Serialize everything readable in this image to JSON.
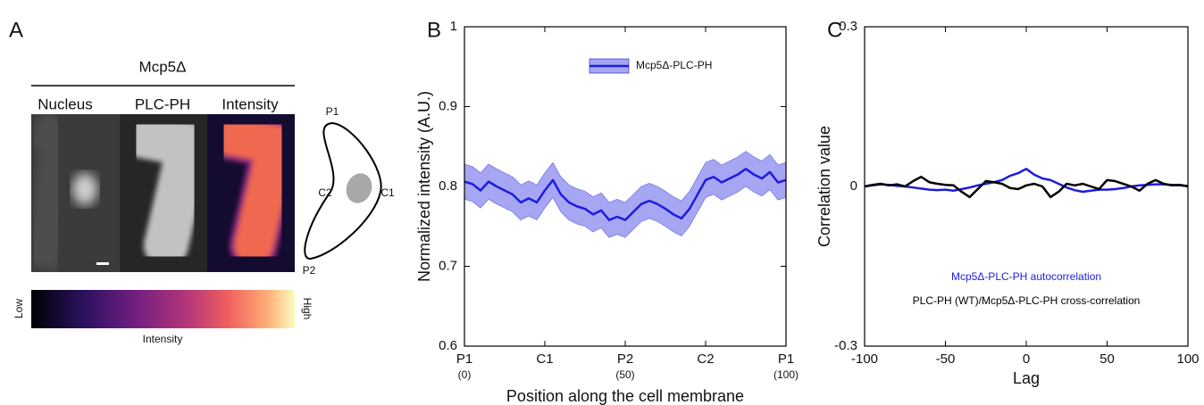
{
  "panel_a": {
    "label": "A",
    "title": "Mcp5Δ",
    "columns": [
      "Nucleus",
      "PLC-PH",
      "Intensity"
    ],
    "colorbar": {
      "low": "Low",
      "high": "High",
      "label": "Intensity"
    },
    "diagram": {
      "labels": [
        "P1",
        "C2",
        "C1",
        "P2"
      ]
    }
  },
  "chart_data": [
    {
      "type": "line",
      "panel_label": "B",
      "xlabel": "Position along the cell membrane",
      "ylabel": "Normalized intensity (A.U.)",
      "xlim": [
        0,
        100
      ],
      "ylim": [
        0.6,
        1
      ],
      "xticks": [
        {
          "value": 0,
          "label": "P1"
        },
        {
          "value": 25,
          "label": "C1"
        },
        {
          "value": 50,
          "label": "P2"
        },
        {
          "value": 75,
          "label": "C2"
        },
        {
          "value": 100,
          "label": "P1"
        }
      ],
      "xtick_sublabels": [
        {
          "value": 0,
          "label": "(0)"
        },
        {
          "value": 50,
          "label": "(50)"
        },
        {
          "value": 100,
          "label": "(100)"
        }
      ],
      "yticks": [
        0.6,
        0.7,
        0.8,
        0.9,
        1
      ],
      "legend": "upper center",
      "x": [
        0,
        2.5,
        5,
        7.5,
        10,
        12.5,
        15,
        17.5,
        20,
        22.5,
        25,
        27.5,
        30,
        32.5,
        35,
        37.5,
        40,
        42.5,
        45,
        47.5,
        50,
        52.5,
        55,
        57.5,
        60,
        62.5,
        65,
        67.5,
        70,
        72.5,
        75,
        77.5,
        80,
        82.5,
        85,
        87.5,
        90,
        92.5,
        95,
        97.5,
        100
      ],
      "series": [
        {
          "name": "Mcp5Δ-PLC-PH",
          "color": "#1c1ce0",
          "band_color": "#a6a6f2",
          "values": [
            0.806,
            0.803,
            0.795,
            0.806,
            0.8,
            0.795,
            0.79,
            0.78,
            0.785,
            0.78,
            0.795,
            0.808,
            0.79,
            0.78,
            0.775,
            0.772,
            0.765,
            0.77,
            0.758,
            0.762,
            0.758,
            0.768,
            0.778,
            0.782,
            0.778,
            0.772,
            0.765,
            0.76,
            0.772,
            0.79,
            0.808,
            0.812,
            0.805,
            0.81,
            0.815,
            0.822,
            0.815,
            0.81,
            0.818,
            0.805,
            0.808
          ],
          "lower": [
            0.784,
            0.781,
            0.773,
            0.784,
            0.778,
            0.773,
            0.768,
            0.758,
            0.763,
            0.758,
            0.773,
            0.786,
            0.768,
            0.758,
            0.753,
            0.75,
            0.743,
            0.748,
            0.736,
            0.74,
            0.736,
            0.746,
            0.756,
            0.76,
            0.756,
            0.75,
            0.743,
            0.738,
            0.75,
            0.768,
            0.786,
            0.79,
            0.783,
            0.788,
            0.793,
            0.8,
            0.793,
            0.788,
            0.796,
            0.783,
            0.786
          ],
          "upper": [
            0.828,
            0.825,
            0.817,
            0.828,
            0.822,
            0.817,
            0.812,
            0.802,
            0.807,
            0.802,
            0.817,
            0.83,
            0.812,
            0.802,
            0.797,
            0.794,
            0.787,
            0.792,
            0.78,
            0.784,
            0.78,
            0.79,
            0.8,
            0.804,
            0.8,
            0.794,
            0.787,
            0.782,
            0.794,
            0.812,
            0.83,
            0.834,
            0.827,
            0.832,
            0.837,
            0.844,
            0.837,
            0.832,
            0.84,
            0.827,
            0.83
          ]
        }
      ]
    },
    {
      "type": "line",
      "panel_label": "C",
      "xlabel": "Lag",
      "ylabel": "Correlation value",
      "xlim": [
        -100,
        100
      ],
      "ylim": [
        -0.3,
        0.3
      ],
      "xticks": [
        -100,
        -50,
        0,
        50,
        100
      ],
      "yticks": [
        -0.3,
        0,
        0.3
      ],
      "legend": "lower center",
      "x": [
        -100,
        -95,
        -90,
        -85,
        -80,
        -75,
        -70,
        -65,
        -60,
        -55,
        -50,
        -45,
        -40,
        -35,
        -30,
        -25,
        -20,
        -15,
        -10,
        -5,
        0,
        5,
        10,
        15,
        20,
        25,
        30,
        35,
        40,
        45,
        50,
        55,
        60,
        65,
        70,
        75,
        80,
        85,
        90,
        95,
        100
      ],
      "series": [
        {
          "name": "Mcp5Δ-PLC-PH autocorrelation",
          "color": "#1c1ce0",
          "values": [
            0,
            0.002,
            0.004,
            0.003,
            0.001,
            0,
            -0.002,
            -0.004,
            -0.006,
            -0.007,
            -0.006,
            -0.008,
            -0.005,
            -0.002,
            0.002,
            0.005,
            0.008,
            0.012,
            0.02,
            0.025,
            0.033,
            0.022,
            0.015,
            0.012,
            0.005,
            -0.002,
            -0.007,
            -0.01,
            -0.008,
            -0.006,
            -0.006,
            -0.005,
            -0.003,
            0,
            0.002,
            0.003,
            0.004,
            0.004,
            0.003,
            0.002,
            0.001
          ]
        },
        {
          "name": "PLC-PH (WT)/Mcp5Δ-PLC-PH cross-correlation",
          "color": "#000000",
          "values": [
            0,
            0.003,
            0.005,
            0.002,
            0.004,
            0,
            0.01,
            0.018,
            0.008,
            0.005,
            0.003,
            0.002,
            -0.01,
            -0.02,
            -0.005,
            0.01,
            0.008,
            0.005,
            -0.003,
            -0.005,
            0.002,
            0.005,
            0,
            -0.02,
            -0.01,
            0.005,
            0.002,
            0.005,
            0,
            -0.005,
            0.012,
            0.01,
            0.005,
            0,
            -0.008,
            0.005,
            0.012,
            0.005,
            0.002,
            0.003,
            0
          ]
        }
      ]
    }
  ]
}
